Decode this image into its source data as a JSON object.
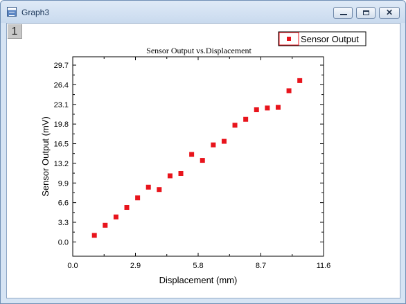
{
  "window": {
    "title": "Graph3",
    "layer_label": "1",
    "colors": {
      "titlebar": "#d6e4f4",
      "frame": "#6f8fb5",
      "layer_tab": "#c8c8c8"
    }
  },
  "chart_data": {
    "type": "scatter",
    "title": "Sensor Output vs.Displacement",
    "xlabel": "Displacement (mm)",
    "ylabel": "Sensor Output (mV)",
    "xlim": [
      0,
      11.6
    ],
    "ylim": [
      -2.4,
      31.1
    ],
    "xticks": [
      "0.0",
      "2.9",
      "5.8",
      "8.7",
      "11.6"
    ],
    "yticks": [
      "0.0",
      "3.3",
      "6.6",
      "9.9",
      "13.2",
      "16.5",
      "19.8",
      "23.1",
      "26.4",
      "29.7"
    ],
    "grid": false,
    "legend_position": "top-right",
    "marker_color": "#e8141c",
    "series": [
      {
        "name": "Sensor Output",
        "x": [
          1.0,
          1.5,
          2.0,
          2.5,
          3.0,
          3.5,
          4.0,
          4.5,
          5.0,
          5.5,
          6.0,
          6.5,
          7.0,
          7.5,
          8.0,
          8.5,
          9.0,
          9.5,
          10.0,
          10.5
        ],
        "y": [
          1.1,
          2.8,
          4.2,
          5.8,
          7.4,
          9.2,
          8.8,
          11.1,
          11.5,
          14.7,
          13.7,
          16.3,
          16.9,
          19.6,
          20.6,
          22.2,
          22.5,
          22.6,
          25.4,
          27.1
        ]
      }
    ]
  }
}
